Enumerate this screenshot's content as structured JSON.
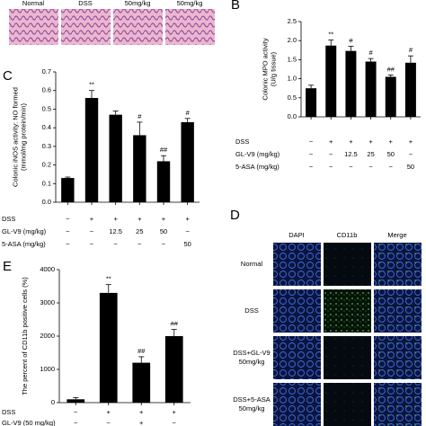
{
  "chart_data": [
    {
      "type": "bar",
      "letter": "B",
      "ylabel": [
        "Colonic MPO activity",
        "(U/g tissue)"
      ],
      "values": [
        0.75,
        1.87,
        1.73,
        1.45,
        1.05,
        1.42
      ],
      "errors": [
        0.08,
        0.15,
        0.12,
        0.08,
        0.05,
        0.18
      ],
      "significance": [
        null,
        "**",
        "#",
        "#",
        "##",
        "#"
      ],
      "color": "#000000",
      "ylim": [
        0,
        2.5
      ],
      "yticks": [
        {
          "value": 0,
          "label": "0.0"
        },
        0.5,
        {
          "value": 1,
          "label": "1.0"
        },
        1.5,
        {
          "value": 2,
          "label": "2.0"
        },
        2.5
      ],
      "rows": [
        {
          "label": "DSS",
          "cells": [
            "−",
            "+",
            "+",
            "+",
            "+",
            "+"
          ]
        },
        {
          "label": "GL-V9 (mg/kg)",
          "cells": [
            "−",
            "−",
            "12.5",
            "25",
            "50",
            "−"
          ]
        },
        {
          "label": "5-ASA (mg/kg)",
          "cells": [
            "−",
            "−",
            "−",
            "−",
            "−",
            "50"
          ]
        }
      ]
    },
    {
      "type": "bar",
      "letter": "C",
      "ylabel": [
        "Colonic iNOS activity: NO formed",
        "(mmol/mg protein/min)"
      ],
      "values": [
        0.13,
        0.56,
        0.47,
        0.36,
        0.22,
        0.43
      ],
      "errors": [
        0.005,
        0.04,
        0.02,
        0.07,
        0.03,
        0.02
      ],
      "significance": [
        null,
        "**",
        null,
        "#",
        "##",
        "#"
      ],
      "color": "#000000",
      "ylim": [
        0,
        0.7
      ],
      "yticks": [
        {
          "value": 0,
          "label": "0.0"
        },
        0.1,
        0.2,
        0.3,
        0.4,
        0.5,
        0.6,
        0.7
      ],
      "rows": [
        {
          "label": "DSS",
          "cells": [
            "−",
            "+",
            "+",
            "+",
            "+",
            "+"
          ]
        },
        {
          "label": "GL-V9 (mg/kg)",
          "cells": [
            "−",
            "−",
            "12.5",
            "25",
            "50",
            "−"
          ]
        },
        {
          "label": "5-ASA (mg/kg)",
          "cells": [
            "−",
            "−",
            "−",
            "−",
            "−",
            "50"
          ]
        }
      ]
    },
    {
      "type": "bar",
      "letter": "E",
      "ylabel": [
        "The percent of CD11b positive cells (%)"
      ],
      "values": [
        100,
        3300,
        1200,
        2000
      ],
      "errors": [
        50,
        250,
        180,
        200
      ],
      "significance": [
        null,
        "**",
        "##",
        "##"
      ],
      "color": "#000000",
      "ylim": [
        0,
        4000
      ],
      "yticks": [
        0,
        1000,
        2000,
        3000,
        4000
      ],
      "rows": [
        {
          "label": "DSS",
          "cells": [
            "−",
            "+",
            "+",
            "+"
          ]
        },
        {
          "label": "GL-V9 (50 mg/kg)",
          "cells": [
            "−",
            "−",
            "+",
            "−"
          ]
        }
      ]
    }
  ],
  "panel_a": {
    "labels": [
      "Normal",
      "DSS",
      "50mg/kg",
      "50mg/kg"
    ]
  },
  "panel_d": {
    "letter": "D",
    "columns": [
      "DAPI",
      "CD11b",
      "Merge"
    ],
    "rows": [
      [
        "Normal"
      ],
      [
        "DSS"
      ],
      [
        "DSS+GL-V9",
        "50mg/kg"
      ],
      [
        "DSS+5-ASA",
        "50mg/kg"
      ]
    ]
  }
}
